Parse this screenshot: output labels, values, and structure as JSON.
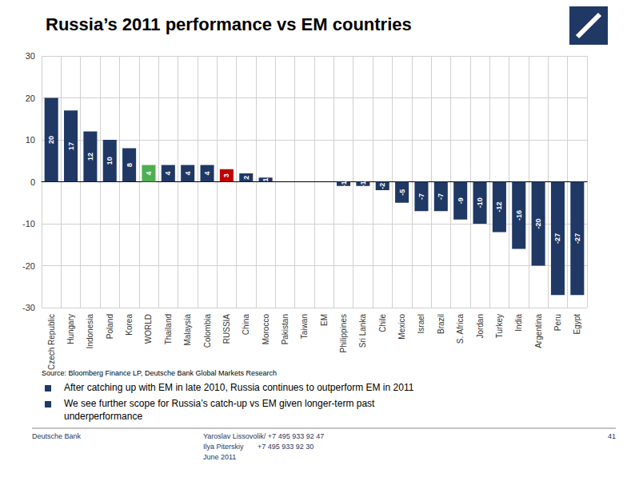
{
  "chart_data": {
    "type": "bar",
    "title": "Russia’s 2011 performance vs EM countries",
    "categories": [
      "Czech Republic",
      "Hungary",
      "Indonesia",
      "Poland",
      "Korea",
      "WORLD",
      "Thailand",
      "Malaysia",
      "Colombia",
      "RUSSIA",
      "China",
      "Morocco",
      "Pakistan",
      "Taiwan",
      "EM",
      "Philippines",
      "Sri Lanka",
      "Chile",
      "Mexico",
      "Israel",
      "Brazil",
      "S. Africa",
      "Jordan",
      "Turkey",
      "India",
      "Argentina",
      "Peru",
      "Egypt"
    ],
    "values": [
      20,
      17,
      12,
      10,
      8,
      4,
      4,
      4,
      4,
      3,
      2,
      1,
      0,
      0,
      0,
      -1,
      -1,
      -2,
      -5,
      -7,
      -7,
      -9,
      -10,
      -12,
      -16,
      -20,
      -27,
      -27
    ],
    "colors": [
      "#1f3864",
      "#1f3864",
      "#1f3864",
      "#1f3864",
      "#1f3864",
      "#4caf50",
      "#1f3864",
      "#1f3864",
      "#1f3864",
      "#c00000",
      "#1f3864",
      "#1f3864",
      "#1f3864",
      "#1f3864",
      "#4caf50",
      "#1f3864",
      "#1f3864",
      "#1f3864",
      "#1f3864",
      "#1f3864",
      "#1f3864",
      "#1f3864",
      "#1f3864",
      "#1f3864",
      "#1f3864",
      "#1f3864",
      "#1f3864",
      "#1f3864"
    ],
    "ylim": [
      -30,
      30
    ],
    "yticks": [
      -30,
      -20,
      -10,
      0,
      10,
      20,
      30
    ],
    "grid": true,
    "data_labels": true,
    "annotations": [
      "Source: Bloomberg Finance LP, Deutsche Bank Global Markets Research",
      "After catching up with EM in late 2010, Russia continues to outperform EM in 2011",
      "We see further scope for Russia’s catch-up vs EM given longer-term past",
      "underperformance",
      "Deutsche Bank",
      "Yaroslav Lissovolik/ +7 495 933 92 47",
      "Ilya Piterskiy       +7 495 933 92 30",
      "June 2011",
      "41"
    ]
  }
}
